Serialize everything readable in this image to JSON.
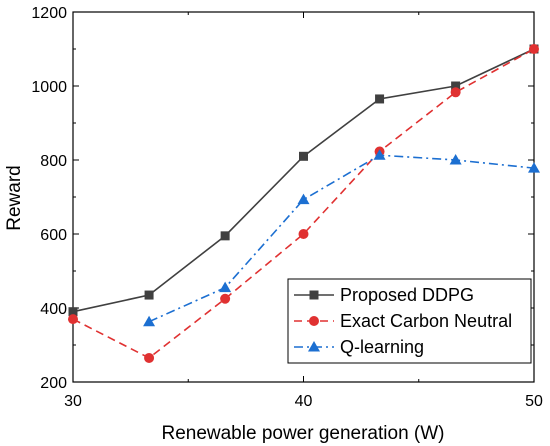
{
  "chart_data": {
    "type": "line",
    "title": "",
    "xlabel": "Renewable power generation (W)",
    "ylabel": "Reward",
    "xlim": [
      30,
      50
    ],
    "ylim": [
      200,
      1200
    ],
    "xticks_major": [
      30,
      40,
      50
    ],
    "xticks_minor": [
      35,
      45
    ],
    "yticks": [
      200,
      400,
      600,
      800,
      1000,
      1200
    ],
    "grid": false,
    "legend_position": "bottom-right",
    "series": [
      {
        "name": "Proposed DDPG",
        "color": "#404040",
        "line_style": "solid",
        "marker": "square",
        "x": [
          30,
          33.3,
          36.6,
          40,
          43.3,
          46.6,
          50
        ],
        "y": [
          390,
          435,
          595,
          810,
          965,
          1000,
          1100
        ]
      },
      {
        "name": "Exact Carbon Neutral",
        "color": "#e03131",
        "line_style": "dashed",
        "marker": "circle",
        "x": [
          30,
          33.3,
          36.6,
          40,
          43.3,
          46.6,
          50
        ],
        "y": [
          370,
          265,
          425,
          600,
          823,
          983,
          1100
        ]
      },
      {
        "name": "Q-learning",
        "color": "#1c6fd1",
        "line_style": "dashdot",
        "marker": "triangle",
        "x": [
          33.3,
          36.6,
          40,
          43.3,
          46.6,
          50
        ],
        "y": [
          363,
          455,
          693,
          813,
          800,
          778
        ]
      }
    ]
  }
}
